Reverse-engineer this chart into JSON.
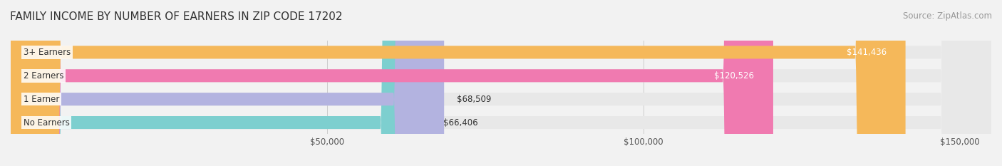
{
  "title": "FAMILY INCOME BY NUMBER OF EARNERS IN ZIP CODE 17202",
  "source": "Source: ZipAtlas.com",
  "categories": [
    "No Earners",
    "1 Earner",
    "2 Earners",
    "3+ Earners"
  ],
  "values": [
    66406,
    68509,
    120526,
    141436
  ],
  "bar_colors": [
    "#7dcfcf",
    "#b3b3e0",
    "#f07ab0",
    "#f5b85a"
  ],
  "label_colors": [
    "#333333",
    "#333333",
    "#ffffff",
    "#ffffff"
  ],
  "xlim_min": 0,
  "xlim_max": 155000,
  "x_ticks": [
    50000,
    100000,
    150000
  ],
  "x_tick_labels": [
    "$50,000",
    "$100,000",
    "$150,000"
  ],
  "bar_height": 0.55,
  "background_color": "#f2f2f2",
  "bar_bg_color": "#e8e8e8",
  "title_fontsize": 11,
  "source_fontsize": 8.5,
  "label_fontsize": 8.5,
  "tick_fontsize": 8.5,
  "category_fontsize": 8.5
}
